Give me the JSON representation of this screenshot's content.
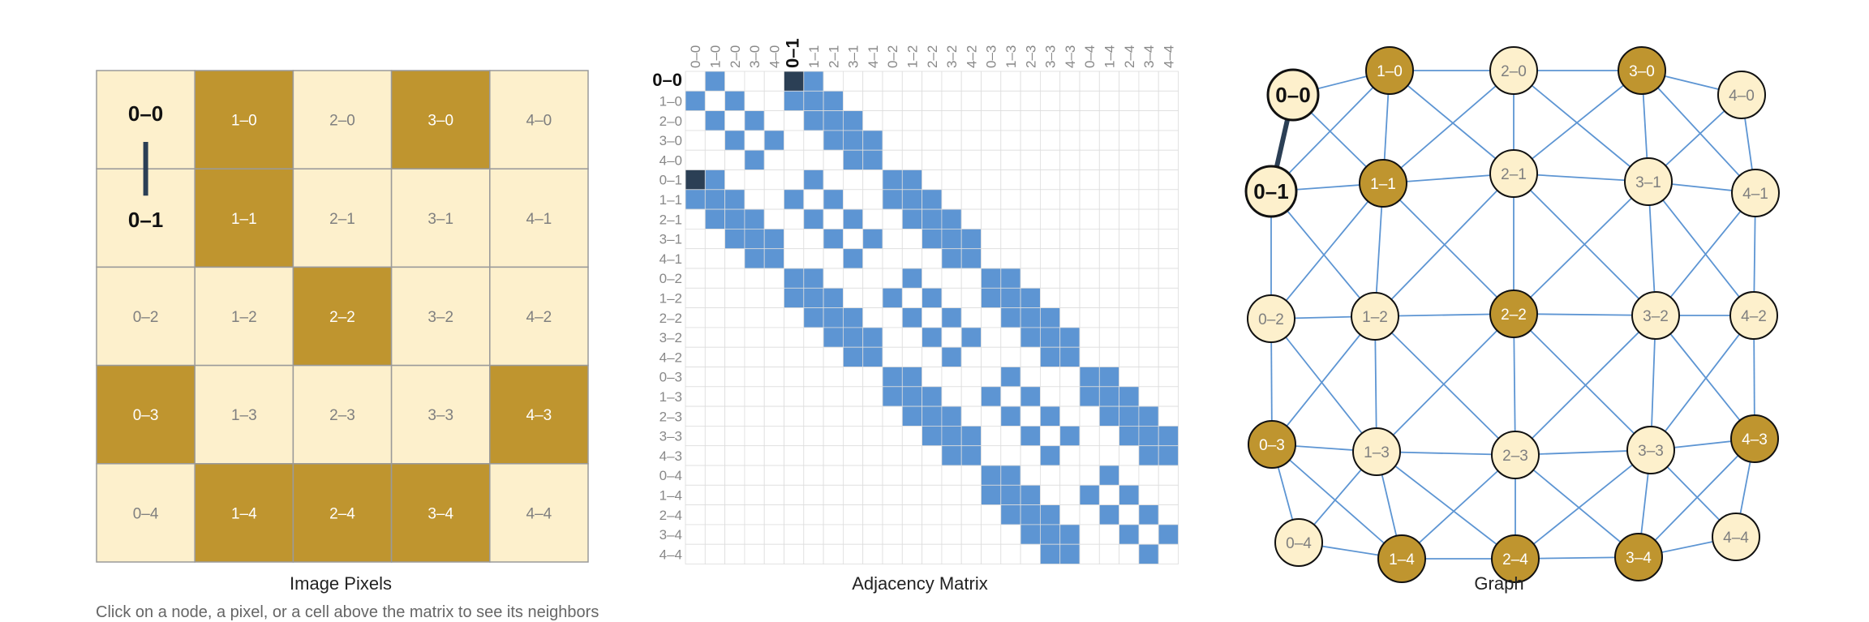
{
  "colors": {
    "light": "#fdf0cc",
    "dark": "#bf952f",
    "grid_border": "#9a9a9a",
    "edge": "#5d95d3",
    "highlight": "#2b3f55",
    "matrix_grid": "#dddddd"
  },
  "panels": {
    "pixels_caption": "Image Pixels",
    "matrix_caption": "Adjacency Matrix",
    "graph_caption": "Graph"
  },
  "grid": {
    "cols": 5,
    "rows": 5,
    "dark_cells": [
      "1-0",
      "3-0",
      "1-1",
      "2-2",
      "0-3",
      "4-3",
      "1-4",
      "2-4",
      "3-4"
    ],
    "highlight_pair": [
      "0-0",
      "0-1"
    ]
  },
  "labels": {
    "0-0": "0–0",
    "1-0": "1–0",
    "2-0": "2–0",
    "3-0": "3–0",
    "4-0": "4–0",
    "0-1": "0–1",
    "1-1": "1–1",
    "2-1": "2–1",
    "3-1": "3–1",
    "4-1": "4–1",
    "0-2": "0–2",
    "1-2": "1–2",
    "2-2": "2–2",
    "3-2": "3–2",
    "4-2": "4–2",
    "0-3": "0–3",
    "1-3": "1–3",
    "2-3": "2–3",
    "3-3": "3–3",
    "4-3": "4–3",
    "0-4": "0–4",
    "1-4": "1–4",
    "2-4": "2–4",
    "3-4": "3–4",
    "4-4": "4–4"
  },
  "matrix_order": [
    "0-0",
    "1-0",
    "2-0",
    "3-0",
    "4-0",
    "0-1",
    "1-1",
    "2-1",
    "3-1",
    "4-1",
    "0-2",
    "1-2",
    "2-2",
    "3-2",
    "4-2",
    "0-3",
    "1-3",
    "2-3",
    "3-3",
    "4-3",
    "0-4",
    "1-4",
    "2-4",
    "3-4",
    "4-4"
  ],
  "footnote": "Click on a node, a pixel, or a cell above the matrix to see its neighbors"
}
